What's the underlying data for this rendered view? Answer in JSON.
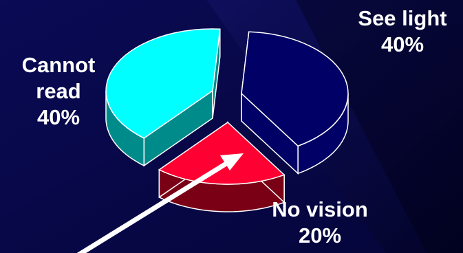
{
  "chart_data": {
    "type": "pie",
    "title": "",
    "slices": [
      {
        "label": "Cannot read",
        "value": 40,
        "value_label": "40%",
        "color": "#00ffff",
        "side_color": "#008b8b"
      },
      {
        "label": "See light",
        "value": 40,
        "value_label": "40%",
        "color": "#000066",
        "side_color": "#000066"
      },
      {
        "label": "No vision",
        "value": 20,
        "value_label": "20%",
        "color": "#ff0033",
        "side_color": "#7a0016"
      }
    ],
    "exploded": true,
    "three_d": true,
    "annotation": "white arrow pointing to No vision slice"
  },
  "labels": {
    "cannot_read": "Cannot\nread\n40%",
    "see_light": "See light\n40%",
    "no_vision": "No vision\n20%"
  },
  "colors": {
    "background": "#0a0a4a",
    "text": "#ffffff",
    "arrow": "#ffffff"
  }
}
